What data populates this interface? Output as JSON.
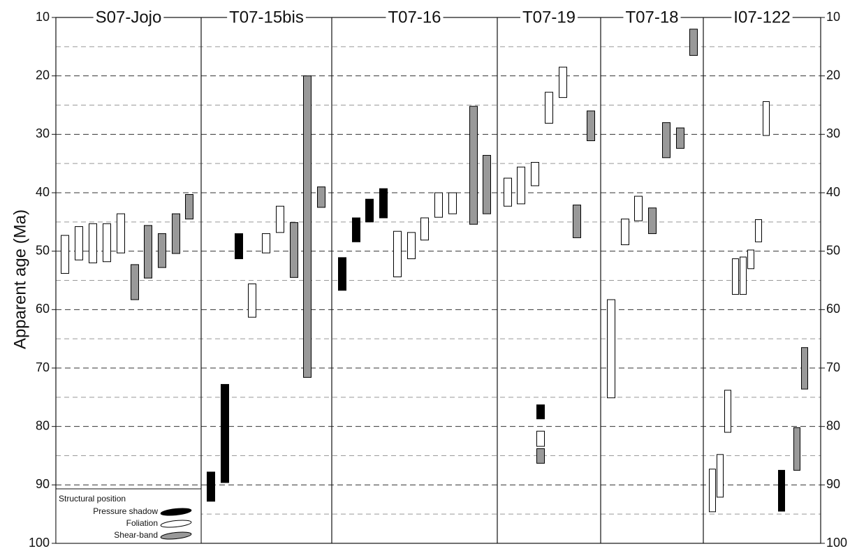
{
  "chart_data": {
    "type": "range",
    "y_label": "Apparent age (Ma)",
    "ylim": [
      10,
      100
    ],
    "y_inverted": true,
    "yticks": [
      10,
      20,
      30,
      40,
      50,
      60,
      70,
      80,
      90,
      100
    ],
    "minor_yticks": [
      15,
      25,
      35,
      45,
      55,
      65,
      75,
      85,
      95
    ],
    "grid": true,
    "legend": {
      "title": "Structural position",
      "position": "lower left",
      "items": [
        {
          "name": "Pressure shadow",
          "color": "#000000"
        },
        {
          "name": "Foliation",
          "color": "#ffffff"
        },
        {
          "name": "Shear-band",
          "color": "#999999"
        }
      ]
    },
    "panels": [
      {
        "name": "S07-Jojo",
        "bars": [
          {
            "structure": "Foliation",
            "low": 47.3,
            "high": 53.8
          },
          {
            "structure": "Foliation",
            "low": 45.8,
            "high": 51.5
          },
          {
            "structure": "Foliation",
            "low": 45.3,
            "high": 52.0
          },
          {
            "structure": "Foliation",
            "low": 45.3,
            "high": 51.8
          },
          {
            "structure": "Foliation",
            "low": 43.6,
            "high": 50.3
          },
          {
            "structure": "Shear-band",
            "low": 52.3,
            "high": 58.3
          },
          {
            "structure": "Shear-band",
            "low": 45.6,
            "high": 54.6
          },
          {
            "structure": "Shear-band",
            "low": 47.0,
            "high": 52.8
          },
          {
            "structure": "Shear-band",
            "low": 43.6,
            "high": 50.4
          },
          {
            "structure": "Shear-band",
            "low": 40.3,
            "high": 44.5
          }
        ]
      },
      {
        "name": "T07-15bis",
        "bars": [
          {
            "structure": "Pressure shadow",
            "low": 87.8,
            "high": 92.8
          },
          {
            "structure": "Pressure shadow",
            "low": 72.8,
            "high": 89.6
          },
          {
            "structure": "Pressure shadow",
            "low": 47.0,
            "high": 51.3
          },
          {
            "structure": "Foliation",
            "low": 55.6,
            "high": 61.3
          },
          {
            "structure": "Foliation",
            "low": 47.0,
            "high": 50.3
          },
          {
            "structure": "Foliation",
            "low": 42.3,
            "high": 46.8
          },
          {
            "structure": "Shear-band",
            "low": 45.1,
            "high": 54.5
          },
          {
            "structure": "Shear-band",
            "low": 20.0,
            "high": 71.6
          },
          {
            "structure": "Shear-band",
            "low": 39.0,
            "high": 42.5
          }
        ]
      },
      {
        "name": "T07-16",
        "bars": [
          {
            "structure": "Pressure shadow",
            "low": 51.1,
            "high": 56.7
          },
          {
            "structure": "Pressure shadow",
            "low": 44.3,
            "high": 48.4
          },
          {
            "structure": "Pressure shadow",
            "low": 41.1,
            "high": 45.0
          },
          {
            "structure": "Pressure shadow",
            "low": 39.3,
            "high": 44.3
          },
          {
            "structure": "Foliation",
            "low": 46.6,
            "high": 54.4
          },
          {
            "structure": "Foliation",
            "low": 46.8,
            "high": 51.3
          },
          {
            "structure": "Foliation",
            "low": 44.3,
            "high": 48.1
          },
          {
            "structure": "Foliation",
            "low": 40.0,
            "high": 44.2
          },
          {
            "structure": "Foliation",
            "low": 40.0,
            "high": 43.6
          },
          {
            "structure": "Shear-band",
            "low": 25.2,
            "high": 45.4
          },
          {
            "structure": "Shear-band",
            "low": 33.6,
            "high": 43.6
          }
        ]
      },
      {
        "name": "T07-19",
        "bars": [
          {
            "structure": "Foliation",
            "low": 37.5,
            "high": 42.3
          },
          {
            "structure": "Foliation",
            "low": 35.6,
            "high": 41.9
          },
          {
            "structure": "Foliation",
            "low": 34.8,
            "high": 38.8
          },
          {
            "structure": "Pressure shadow",
            "low": 76.3,
            "high": 78.7
          },
          {
            "structure": "Foliation",
            "low": 80.8,
            "high": 83.4
          },
          {
            "structure": "Shear-band",
            "low": 83.8,
            "high": 86.3
          },
          {
            "structure": "Foliation",
            "low": 22.8,
            "high": 28.1
          },
          {
            "structure": "Foliation",
            "low": 18.5,
            "high": 23.7
          },
          {
            "structure": "Shear-band",
            "low": 42.1,
            "high": 47.7
          },
          {
            "structure": "Shear-band",
            "low": 26.0,
            "high": 31.1
          }
        ]
      },
      {
        "name": "T07-18",
        "bars": [
          {
            "structure": "Foliation",
            "low": 58.3,
            "high": 75.1
          },
          {
            "structure": "Foliation",
            "low": 44.5,
            "high": 48.9
          },
          {
            "structure": "Foliation",
            "low": 40.6,
            "high": 44.8
          },
          {
            "structure": "Shear-band",
            "low": 42.6,
            "high": 47.0
          },
          {
            "structure": "Shear-band",
            "low": 28.0,
            "high": 34.0
          },
          {
            "structure": "Shear-band",
            "low": 28.9,
            "high": 32.4
          },
          {
            "structure": "Shear-band",
            "low": 12.0,
            "high": 16.5
          }
        ]
      },
      {
        "name": "I07-122",
        "bars": [
          {
            "structure": "Foliation",
            "low": 87.3,
            "high": 94.6
          },
          {
            "structure": "Foliation",
            "low": 84.8,
            "high": 92.1
          },
          {
            "structure": "Foliation",
            "low": 73.8,
            "high": 81.0
          },
          {
            "structure": "Foliation",
            "low": 51.3,
            "high": 57.4
          },
          {
            "structure": "Foliation",
            "low": 51.0,
            "high": 57.4
          },
          {
            "structure": "Foliation",
            "low": 49.8,
            "high": 53.0
          },
          {
            "structure": "Foliation",
            "low": 44.6,
            "high": 48.4
          },
          {
            "structure": "Foliation",
            "low": 24.4,
            "high": 30.2
          },
          {
            "structure": "Pressure shadow",
            "low": 87.5,
            "high": 94.5
          },
          {
            "structure": "Shear-band",
            "low": 80.2,
            "high": 87.5
          },
          {
            "structure": "Shear-band",
            "low": 66.5,
            "high": 73.6
          }
        ]
      }
    ]
  }
}
